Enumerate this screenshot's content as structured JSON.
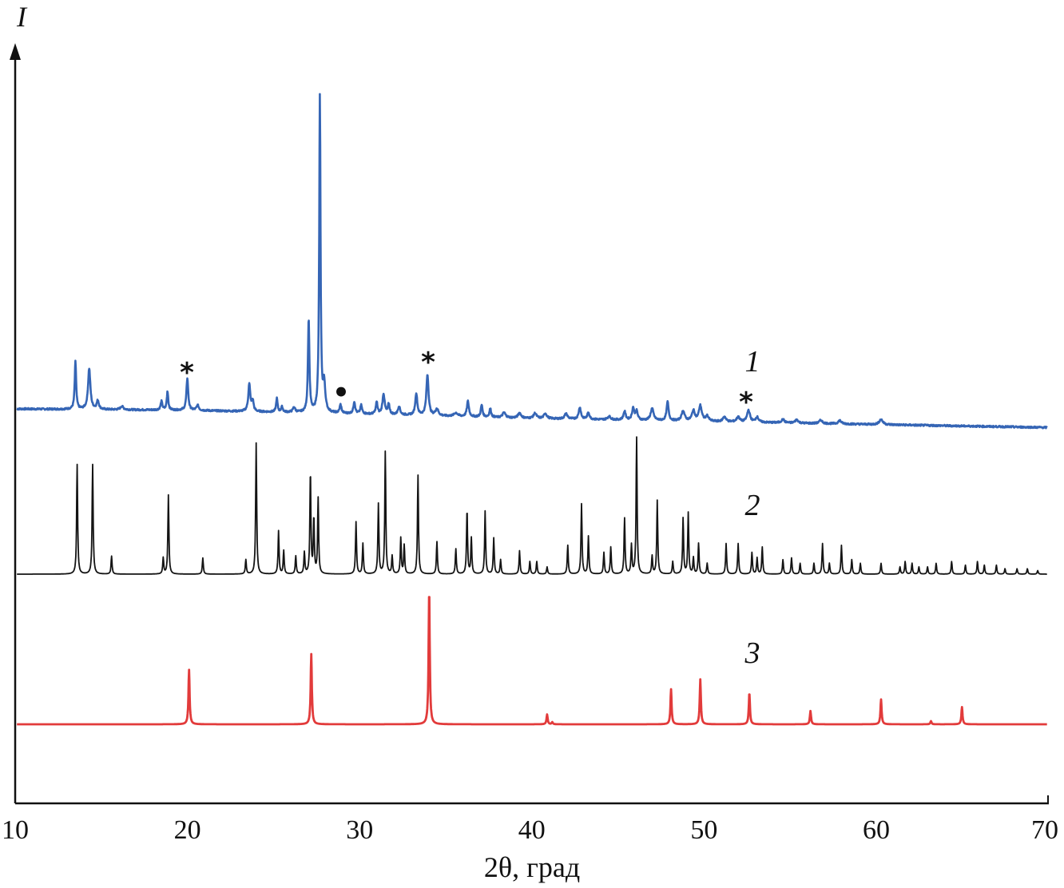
{
  "chart_data": {
    "type": "line",
    "xlabel": "2θ, град",
    "ylabel": "I",
    "xlim": [
      10,
      70
    ],
    "x_ticks": [
      "10",
      "20",
      "30",
      "40",
      "50",
      "60",
      "70"
    ],
    "x_tick_values": [
      10,
      20,
      30,
      40,
      50,
      60,
      70
    ],
    "grid": false,
    "legend": "none",
    "series": [
      {
        "label": "1",
        "color": "#3565b5",
        "stroke_width": 2.6,
        "baseline": [
          [
            10.1,
            0.0
          ],
          [
            20,
            -0.4
          ],
          [
            30,
            -1.5
          ],
          [
            40,
            -2.8
          ],
          [
            50,
            -3.7
          ],
          [
            60,
            -4.6
          ],
          [
            70,
            -5.5
          ]
        ],
        "peaks": [
          [
            13.5,
            14.0,
            0.1
          ],
          [
            14.3,
            12.0,
            0.16
          ],
          [
            14.8,
            2.5,
            0.15
          ],
          [
            16.2,
            1.0,
            0.2
          ],
          [
            18.5,
            2.5,
            0.12
          ],
          [
            18.85,
            5.5,
            0.1
          ],
          [
            20.0,
            9.5,
            0.12
          ],
          [
            20.6,
            1.5,
            0.15
          ],
          [
            23.6,
            8.0,
            0.14
          ],
          [
            23.8,
            3.0,
            0.12
          ],
          [
            25.2,
            4.0,
            0.1
          ],
          [
            25.5,
            1.5,
            0.12
          ],
          [
            26.2,
            1.5,
            0.15
          ],
          [
            27.05,
            27.5,
            0.1
          ],
          [
            27.7,
            93.0,
            0.09
          ],
          [
            27.95,
            8.0,
            0.15
          ],
          [
            28.9,
            2.5,
            0.12
          ],
          [
            29.7,
            3.5,
            0.12
          ],
          [
            30.1,
            2.5,
            0.12
          ],
          [
            31.0,
            3.5,
            0.12
          ],
          [
            31.4,
            6.0,
            0.15
          ],
          [
            31.7,
            3.0,
            0.12
          ],
          [
            32.3,
            2.5,
            0.15
          ],
          [
            33.3,
            6.5,
            0.14
          ],
          [
            33.95,
            12.0,
            0.15
          ],
          [
            34.5,
            2.0,
            0.2
          ],
          [
            35.6,
            1.0,
            0.25
          ],
          [
            36.3,
            4.5,
            0.14
          ],
          [
            37.1,
            3.5,
            0.12
          ],
          [
            37.6,
            2.5,
            0.12
          ],
          [
            38.4,
            1.5,
            0.2
          ],
          [
            39.3,
            1.5,
            0.2
          ],
          [
            40.2,
            1.5,
            0.2
          ],
          [
            40.8,
            1.5,
            0.2
          ],
          [
            42.0,
            1.5,
            0.2
          ],
          [
            42.8,
            3.5,
            0.15
          ],
          [
            43.3,
            2.0,
            0.15
          ],
          [
            44.5,
            1.0,
            0.2
          ],
          [
            45.4,
            2.5,
            0.15
          ],
          [
            45.9,
            3.5,
            0.15
          ],
          [
            46.1,
            2.5,
            0.15
          ],
          [
            47.0,
            3.5,
            0.2
          ],
          [
            47.9,
            5.5,
            0.14
          ],
          [
            48.8,
            3.0,
            0.2
          ],
          [
            49.4,
            3.0,
            0.2
          ],
          [
            49.8,
            4.5,
            0.2
          ],
          [
            50.2,
            1.5,
            0.2
          ],
          [
            51.2,
            1.5,
            0.2
          ],
          [
            52.0,
            1.5,
            0.2
          ],
          [
            52.6,
            3.5,
            0.2
          ],
          [
            53.1,
            1.5,
            0.2
          ],
          [
            54.6,
            1.0,
            0.2
          ],
          [
            55.4,
            1.0,
            0.2
          ],
          [
            56.8,
            1.0,
            0.2
          ],
          [
            57.9,
            1.0,
            0.2
          ],
          [
            60.3,
            1.5,
            0.25
          ]
        ]
      },
      {
        "label": "2",
        "color": "#141414",
        "stroke_width": 1.8,
        "baseline": [
          [
            10.1,
            0.0
          ],
          [
            70,
            0.0
          ]
        ],
        "peaks": [
          [
            13.6,
            30.5,
            0.07
          ],
          [
            14.5,
            30.5,
            0.07
          ],
          [
            15.6,
            5.0,
            0.07
          ],
          [
            18.6,
            4.5,
            0.07
          ],
          [
            18.9,
            22.0,
            0.07
          ],
          [
            20.9,
            4.5,
            0.07
          ],
          [
            23.4,
            4.0,
            0.07
          ],
          [
            24.0,
            36.5,
            0.07
          ],
          [
            25.3,
            12.0,
            0.07
          ],
          [
            25.6,
            6.5,
            0.07
          ],
          [
            26.3,
            5.0,
            0.07
          ],
          [
            26.8,
            6.0,
            0.07
          ],
          [
            27.15,
            28.5,
            0.07
          ],
          [
            27.35,
            15.5,
            0.07
          ],
          [
            27.6,
            21.0,
            0.07
          ],
          [
            29.8,
            14.5,
            0.07
          ],
          [
            30.2,
            8.5,
            0.07
          ],
          [
            31.1,
            19.5,
            0.07
          ],
          [
            31.5,
            34.0,
            0.07
          ],
          [
            31.9,
            5.0,
            0.07
          ],
          [
            32.4,
            10.0,
            0.07
          ],
          [
            32.6,
            8.0,
            0.07
          ],
          [
            33.4,
            27.5,
            0.07
          ],
          [
            34.5,
            9.0,
            0.07
          ],
          [
            35.6,
            7.0,
            0.07
          ],
          [
            36.25,
            18.0,
            0.07
          ],
          [
            36.5,
            10.0,
            0.07
          ],
          [
            37.3,
            17.5,
            0.07
          ],
          [
            37.8,
            10.0,
            0.07
          ],
          [
            38.2,
            4.0,
            0.07
          ],
          [
            39.3,
            6.5,
            0.07
          ],
          [
            39.9,
            3.5,
            0.07
          ],
          [
            40.3,
            3.5,
            0.07
          ],
          [
            40.9,
            2.0,
            0.07
          ],
          [
            42.1,
            8.0,
            0.07
          ],
          [
            42.9,
            19.5,
            0.07
          ],
          [
            43.3,
            10.5,
            0.07
          ],
          [
            44.2,
            6.0,
            0.07
          ],
          [
            44.6,
            7.5,
            0.07
          ],
          [
            45.4,
            15.5,
            0.07
          ],
          [
            45.8,
            8.0,
            0.07
          ],
          [
            46.1,
            38.0,
            0.07
          ],
          [
            47.0,
            5.0,
            0.07
          ],
          [
            47.3,
            20.5,
            0.07
          ],
          [
            48.2,
            3.5,
            0.07
          ],
          [
            48.8,
            15.5,
            0.07
          ],
          [
            49.1,
            17.0,
            0.07
          ],
          [
            49.4,
            4.5,
            0.07
          ],
          [
            49.7,
            8.5,
            0.07
          ],
          [
            50.2,
            3.0,
            0.07
          ],
          [
            51.3,
            8.5,
            0.07
          ],
          [
            52.0,
            8.5,
            0.07
          ],
          [
            52.8,
            6.0,
            0.07
          ],
          [
            53.1,
            4.5,
            0.07
          ],
          [
            53.4,
            7.5,
            0.07
          ],
          [
            54.6,
            4.0,
            0.07
          ],
          [
            55.1,
            4.5,
            0.07
          ],
          [
            55.6,
            3.0,
            0.07
          ],
          [
            56.4,
            3.0,
            0.07
          ],
          [
            56.9,
            8.5,
            0.07
          ],
          [
            57.3,
            3.0,
            0.07
          ],
          [
            58.0,
            8.0,
            0.07
          ],
          [
            58.6,
            4.0,
            0.07
          ],
          [
            59.1,
            3.0,
            0.07
          ],
          [
            60.3,
            3.0,
            0.07
          ],
          [
            61.4,
            2.0,
            0.07
          ],
          [
            61.7,
            3.5,
            0.07
          ],
          [
            62.1,
            3.0,
            0.07
          ],
          [
            62.5,
            2.0,
            0.07
          ],
          [
            63.0,
            2.0,
            0.07
          ],
          [
            63.5,
            3.0,
            0.07
          ],
          [
            64.4,
            3.5,
            0.07
          ],
          [
            65.2,
            2.5,
            0.07
          ],
          [
            65.9,
            3.5,
            0.07
          ],
          [
            66.3,
            2.5,
            0.07
          ],
          [
            67.0,
            2.5,
            0.07
          ],
          [
            67.5,
            1.5,
            0.07
          ],
          [
            68.2,
            1.5,
            0.07
          ],
          [
            68.8,
            1.5,
            0.07
          ],
          [
            69.4,
            1.0,
            0.07
          ]
        ]
      },
      {
        "label": "3",
        "color": "#e23b3b",
        "stroke_width": 2.8,
        "baseline": [
          [
            10.1,
            0.0
          ],
          [
            70,
            0.0
          ]
        ],
        "peaks": [
          [
            20.1,
            15.5,
            0.08
          ],
          [
            27.2,
            20.0,
            0.08
          ],
          [
            34.05,
            38.5,
            0.08
          ],
          [
            40.9,
            2.8,
            0.08
          ],
          [
            41.2,
            0.6,
            0.08
          ],
          [
            48.1,
            10.0,
            0.08
          ],
          [
            49.8,
            12.8,
            0.08
          ],
          [
            52.65,
            9.0,
            0.08
          ],
          [
            56.2,
            3.8,
            0.08
          ],
          [
            60.3,
            7.1,
            0.08
          ],
          [
            63.2,
            0.9,
            0.08
          ],
          [
            65.0,
            4.9,
            0.08
          ]
        ]
      }
    ],
    "annotations": [
      {
        "text": "*",
        "x": 20.0
      },
      {
        "text": "•",
        "x": 28.9
      },
      {
        "text": "*",
        "x": 33.95
      },
      {
        "text": "*",
        "x": 52.6
      }
    ]
  }
}
